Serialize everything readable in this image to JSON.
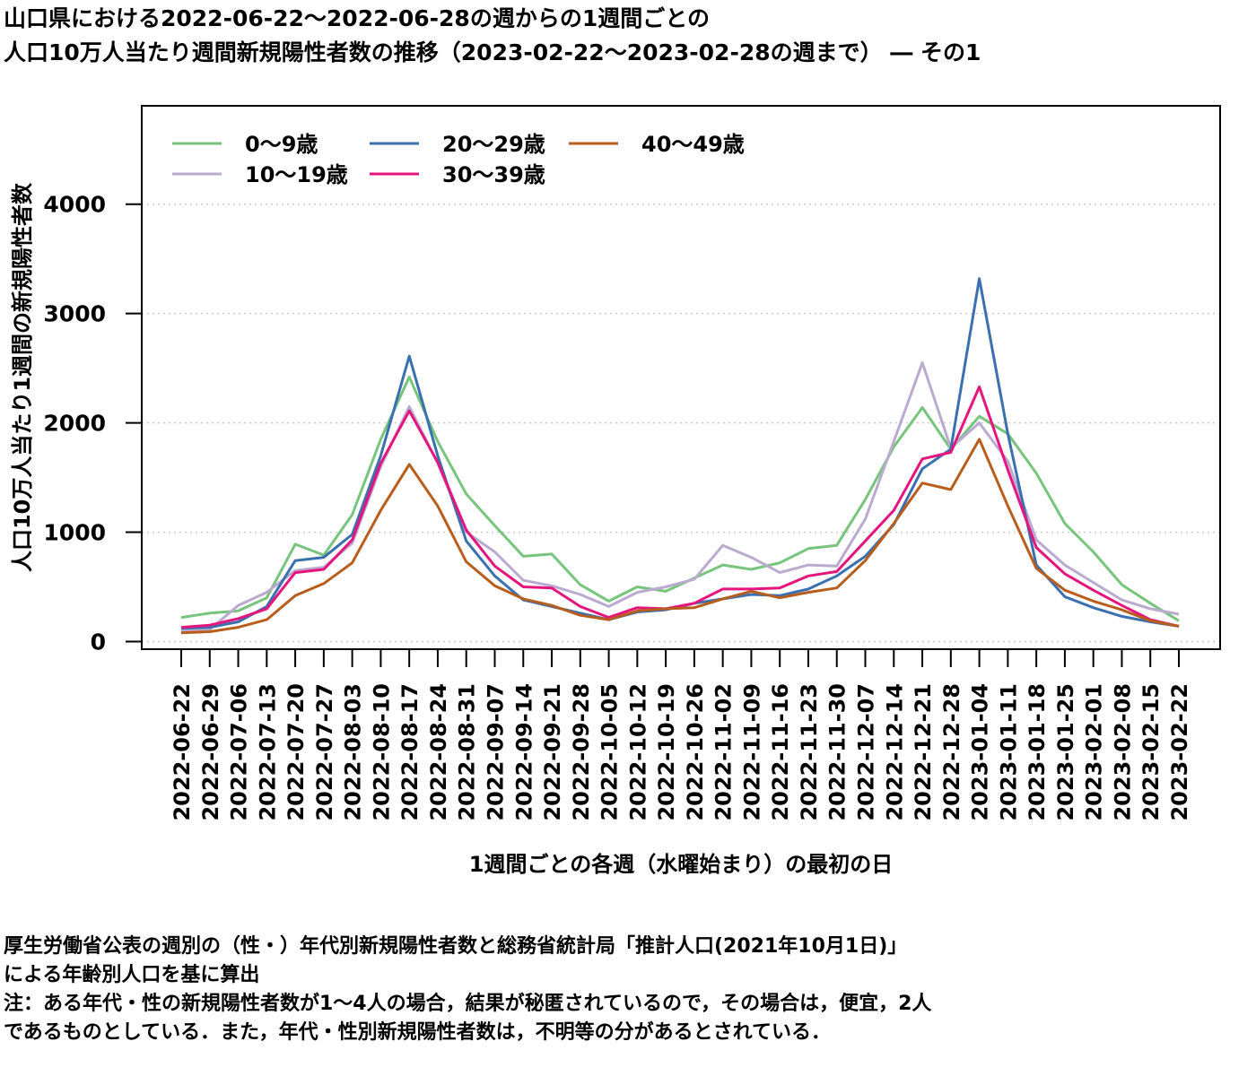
{
  "title": {
    "line1": "山口県における2022-06-22～2022-06-28の週からの1週間ごとの",
    "line2": "人口10万人当たり週間新規陽性者数の推移（2023-02-22～2023-02-28の週まで） ― その1"
  },
  "notes": {
    "line1": "厚生労働省公表の週別の（性・）年代別新規陽性者数と総務省統計局「推計人口(2021年10月1日)」",
    "line2": "による年齢別人口を基に算出",
    "line3": "注：ある年代・性の新規陽性者数が1～4人の場合，結果が秘匿されているので，その場合は，便宜，2人",
    "line4": "であるものとしている．また，年代・性別新規陽性者数は，不明等の分があるとされている．"
  },
  "chart_data": {
    "type": "line",
    "xlabel": "1週間ごとの各週（水曜始まり）の最初の日",
    "ylabel": "人口10万人当たり1週間の新規陽性者数",
    "ylim": [
      -70,
      4900
    ],
    "yticks": [
      0,
      1000,
      2000,
      3000,
      4000
    ],
    "grid": "horizontal dotted",
    "legend_position": "top-left",
    "categories": [
      "2022-06-22",
      "2022-06-29",
      "2022-07-06",
      "2022-07-13",
      "2022-07-20",
      "2022-07-27",
      "2022-08-03",
      "2022-08-10",
      "2022-08-17",
      "2022-08-24",
      "2022-08-31",
      "2022-09-07",
      "2022-09-14",
      "2022-09-21",
      "2022-09-28",
      "2022-10-05",
      "2022-10-12",
      "2022-10-19",
      "2022-10-26",
      "2022-11-02",
      "2022-11-09",
      "2022-11-16",
      "2022-11-23",
      "2022-11-30",
      "2022-12-07",
      "2022-12-14",
      "2022-12-21",
      "2022-12-28",
      "2023-01-04",
      "2023-01-11",
      "2023-01-18",
      "2023-01-25",
      "2023-02-01",
      "2023-02-08",
      "2023-02-15",
      "2023-02-22"
    ],
    "series": [
      {
        "name": "0～9歳",
        "color": "#77c47d",
        "values": [
          220,
          260,
          280,
          400,
          890,
          790,
          1160,
          1850,
          2420,
          1830,
          1350,
          1060,
          780,
          800,
          520,
          370,
          500,
          460,
          580,
          700,
          660,
          720,
          850,
          880,
          1300,
          1780,
          2140,
          1760,
          2060,
          1900,
          1540,
          1080,
          820,
          520,
          350,
          190
        ]
      },
      {
        "name": "10～19歳",
        "color": "#bbaad0",
        "values": [
          100,
          110,
          330,
          450,
          650,
          680,
          900,
          1600,
          2150,
          1630,
          1000,
          820,
          560,
          510,
          430,
          320,
          450,
          500,
          570,
          880,
          770,
          630,
          700,
          690,
          1120,
          1830,
          2550,
          1770,
          2000,
          1650,
          930,
          700,
          540,
          380,
          300,
          250
        ]
      },
      {
        "name": "20～29歳",
        "color": "#3a70b0",
        "values": [
          120,
          130,
          180,
          320,
          740,
          770,
          980,
          1700,
          2610,
          1700,
          920,
          600,
          380,
          320,
          260,
          200,
          270,
          290,
          350,
          390,
          430,
          420,
          480,
          600,
          780,
          1070,
          1580,
          1760,
          3320,
          1900,
          700,
          410,
          310,
          230,
          180,
          140
        ]
      },
      {
        "name": "30～39歳",
        "color": "#e6157d",
        "values": [
          130,
          150,
          210,
          300,
          630,
          660,
          930,
          1630,
          2110,
          1640,
          1020,
          690,
          500,
          490,
          320,
          220,
          310,
          300,
          350,
          480,
          480,
          490,
          600,
          640,
          920,
          1200,
          1670,
          1730,
          2330,
          1570,
          860,
          620,
          470,
          330,
          200,
          140
        ]
      },
      {
        "name": "40～49歳",
        "color": "#b85d1c",
        "values": [
          80,
          90,
          130,
          200,
          420,
          530,
          720,
          1200,
          1620,
          1240,
          730,
          510,
          390,
          330,
          240,
          200,
          280,
          300,
          310,
          390,
          460,
          400,
          450,
          490,
          740,
          1080,
          1450,
          1390,
          1850,
          1240,
          670,
          470,
          370,
          290,
          190,
          140
        ]
      }
    ]
  }
}
